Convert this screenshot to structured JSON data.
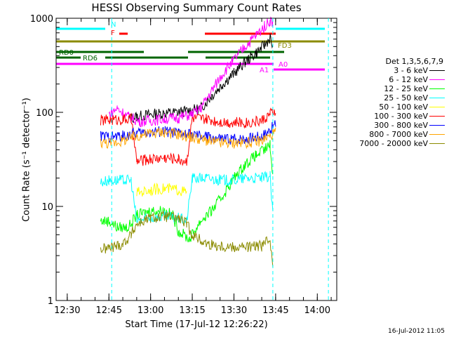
{
  "chart_data": {
    "type": "line",
    "title": "HESSI Observing Summary Count Rates",
    "xlabel": "Start Time (17-Jul-12 12:26:22)",
    "ylabel": "Count Rate (s⁻¹ detector⁻¹)",
    "x_start": "12:26:22",
    "xlim": [
      "12:26",
      "14:07"
    ],
    "xticks": [
      "12:30",
      "12:45",
      "13:00",
      "13:15",
      "13:30",
      "13:45",
      "14:00"
    ],
    "yscale": "log",
    "ylim": [
      1,
      1000
    ],
    "yticks": [
      "1",
      "10",
      "100",
      "1000"
    ],
    "legend_title": "Det 1,3,5,6,7,9",
    "legend_position": "right",
    "series": [
      {
        "name": "3 - 6 keV",
        "color": "#000000",
        "points": [
          [
            "12:52",
            85
          ],
          [
            "12:55",
            90
          ],
          [
            "13:00",
            95
          ],
          [
            "13:05",
            98
          ],
          [
            "13:10",
            100
          ],
          [
            "13:15",
            105
          ],
          [
            "13:18",
            110
          ],
          [
            "13:22",
            150
          ],
          [
            "13:26",
            200
          ],
          [
            "13:30",
            260
          ],
          [
            "13:34",
            340
          ],
          [
            "13:38",
            430
          ],
          [
            "13:41",
            520
          ],
          [
            "13:43",
            620
          ],
          [
            "13:44",
            500
          ]
        ]
      },
      {
        "name": "6 - 12 keV",
        "color": "#ff00ff",
        "points": [
          [
            "12:45",
            95
          ],
          [
            "12:48",
            110
          ],
          [
            "12:52",
            90
          ],
          [
            "12:56",
            80
          ],
          [
            "13:00",
            82
          ],
          [
            "13:05",
            85
          ],
          [
            "13:10",
            88
          ],
          [
            "13:15",
            95
          ],
          [
            "13:18",
            110
          ],
          [
            "13:22",
            170
          ],
          [
            "13:26",
            260
          ],
          [
            "13:30",
            360
          ],
          [
            "13:34",
            500
          ],
          [
            "13:38",
            660
          ],
          [
            "13:41",
            820
          ],
          [
            "13:43",
            950
          ],
          [
            "13:44",
            900
          ]
        ]
      },
      {
        "name": "12 - 25 keV",
        "color": "#00ff00",
        "points": [
          [
            "12:42",
            7
          ],
          [
            "12:45",
            7
          ],
          [
            "12:48",
            6
          ],
          [
            "12:52",
            6
          ],
          [
            "12:55",
            8
          ],
          [
            "13:00",
            9
          ],
          [
            "13:05",
            9
          ],
          [
            "13:08",
            8
          ],
          [
            "13:10",
            5.5
          ],
          [
            "13:14",
            4.5
          ],
          [
            "13:18",
            7
          ],
          [
            "13:22",
            9
          ],
          [
            "13:26",
            13
          ],
          [
            "13:30",
            20
          ],
          [
            "13:34",
            28
          ],
          [
            "13:38",
            35
          ],
          [
            "13:41",
            40
          ],
          [
            "13:43",
            45
          ],
          [
            "13:44",
            20
          ]
        ]
      },
      {
        "name": "25 - 50 keV",
        "color": "#00ffff",
        "points": [
          [
            "12:42",
            18
          ],
          [
            "12:45",
            19
          ],
          [
            "12:48",
            19
          ],
          [
            "12:50",
            19
          ],
          [
            "12:53",
            19
          ],
          [
            "12:55",
            7
          ],
          [
            "13:00",
            7.5
          ],
          [
            "13:05",
            7.8
          ],
          [
            "13:10",
            7.5
          ],
          [
            "13:13",
            7
          ],
          [
            "13:15",
            20
          ],
          [
            "13:20",
            20
          ],
          [
            "13:25",
            19
          ],
          [
            "13:30",
            19
          ],
          [
            "13:35",
            20
          ],
          [
            "13:40",
            20
          ],
          [
            "13:43",
            21
          ],
          [
            "13:44",
            8
          ]
        ]
      },
      {
        "name": "50 - 100 keV",
        "color": "#ffff00",
        "points": [
          [
            "12:55",
            14
          ],
          [
            "13:00",
            15
          ],
          [
            "13:05",
            15.5
          ],
          [
            "13:10",
            15
          ],
          [
            "13:13",
            14
          ]
        ]
      },
      {
        "name": "100 - 300 keV",
        "color": "#ff0000",
        "points": [
          [
            "12:42",
            82
          ],
          [
            "12:45",
            83
          ],
          [
            "12:50",
            84
          ],
          [
            "12:53",
            85
          ],
          [
            "12:55",
            30
          ],
          [
            "13:00",
            32
          ],
          [
            "13:05",
            33
          ],
          [
            "13:10",
            32
          ],
          [
            "13:13",
            30
          ],
          [
            "13:15",
            86
          ],
          [
            "13:20",
            84
          ],
          [
            "13:25",
            80
          ],
          [
            "13:30",
            78
          ],
          [
            "13:35",
            78
          ],
          [
            "13:40",
            82
          ],
          [
            "13:43",
            95
          ],
          [
            "13:45",
            105
          ]
        ]
      },
      {
        "name": "300 - 800 keV",
        "color": "#0000ff",
        "points": [
          [
            "12:42",
            56
          ],
          [
            "12:45",
            55
          ],
          [
            "12:50",
            56
          ],
          [
            "12:55",
            60
          ],
          [
            "13:00",
            62
          ],
          [
            "13:05",
            63
          ],
          [
            "13:10",
            60
          ],
          [
            "13:15",
            57
          ],
          [
            "13:20",
            55
          ],
          [
            "13:25",
            52
          ],
          [
            "13:30",
            52
          ],
          [
            "13:35",
            53
          ],
          [
            "13:40",
            56
          ],
          [
            "13:43",
            65
          ],
          [
            "13:45",
            75
          ]
        ]
      },
      {
        "name": "800 - 7000 keV",
        "color": "#ffa500",
        "points": [
          [
            "12:42",
            48
          ],
          [
            "12:45",
            47
          ],
          [
            "12:50",
            50
          ],
          [
            "12:55",
            56
          ],
          [
            "13:00",
            60
          ],
          [
            "13:05",
            62
          ],
          [
            "13:10",
            58
          ],
          [
            "13:15",
            54
          ],
          [
            "13:20",
            50
          ],
          [
            "13:25",
            47
          ],
          [
            "13:30",
            47
          ],
          [
            "13:35",
            48
          ],
          [
            "13:40",
            50
          ],
          [
            "13:43",
            56
          ],
          [
            "13:45",
            62
          ]
        ]
      },
      {
        "name": "7000 - 20000 keV",
        "color": "#8b8b00",
        "points": [
          [
            "12:42",
            3.5
          ],
          [
            "12:45",
            3.6
          ],
          [
            "12:50",
            4
          ],
          [
            "12:53",
            5
          ],
          [
            "12:55",
            6.5
          ],
          [
            "13:00",
            7.5
          ],
          [
            "13:05",
            7.8
          ],
          [
            "13:10",
            7.5
          ],
          [
            "13:13",
            6.5
          ],
          [
            "13:15",
            5
          ],
          [
            "13:20",
            4
          ],
          [
            "13:25",
            3.8
          ],
          [
            "13:30",
            3.7
          ],
          [
            "13:35",
            3.7
          ],
          [
            "13:40",
            3.8
          ],
          [
            "13:43",
            4.5
          ],
          [
            "13:44",
            2.5
          ]
        ]
      }
    ],
    "annotations": [
      "N",
      "F",
      "FD3",
      "RD0",
      "RD6",
      "A0",
      "A1"
    ],
    "dashed_vlines": [
      "12:46",
      "13:44",
      "14:04"
    ]
  },
  "footer": {
    "date": "16-Jul-2012 11:05"
  },
  "colors": {
    "background": "#ffffff",
    "axis": "#000000",
    "dashed_lines": "#00ffff"
  }
}
